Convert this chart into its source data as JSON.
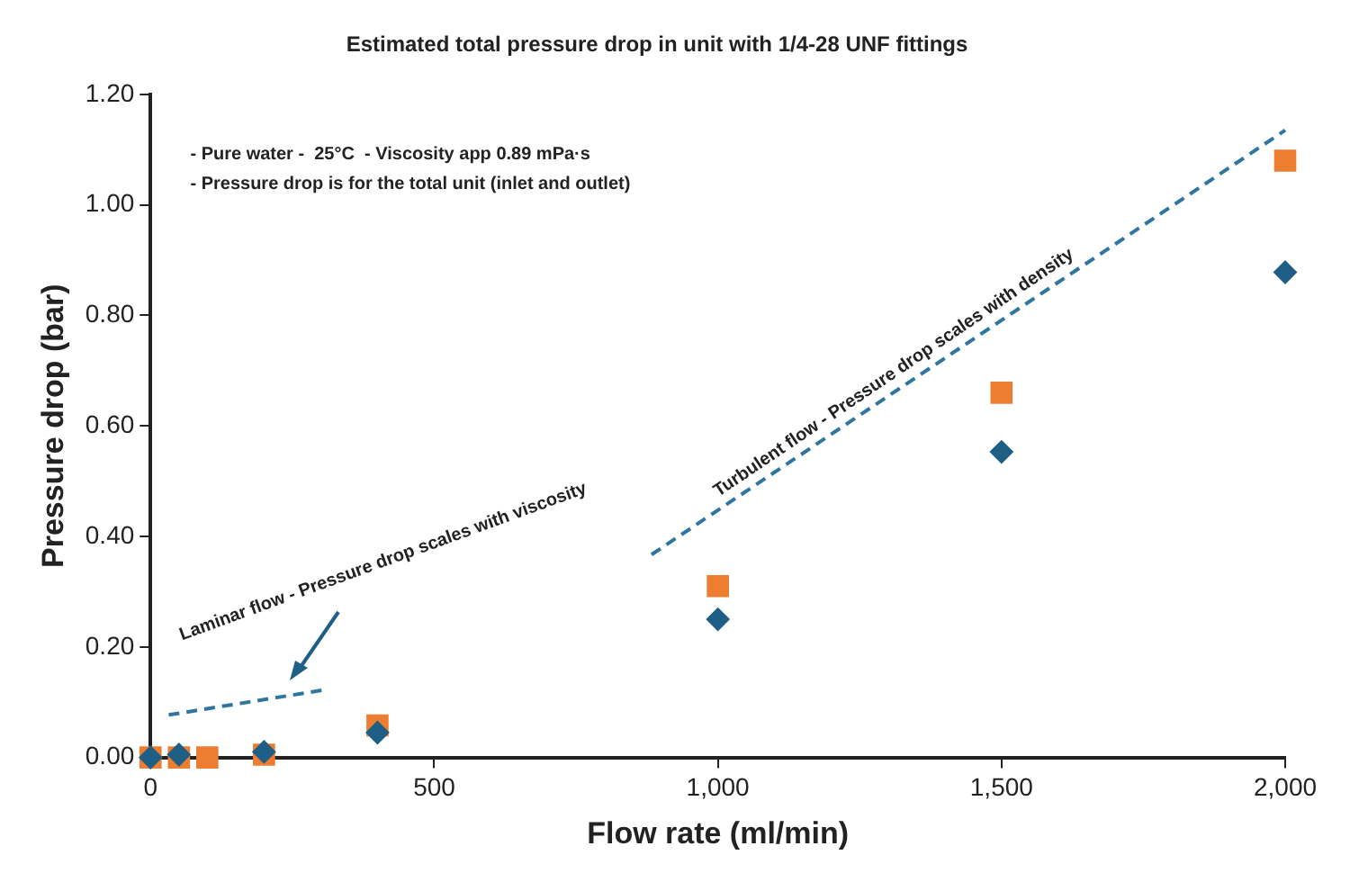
{
  "chart_data": {
    "type": "scatter",
    "title": "Estimated total pressure drop in unit with 1/4-28 UNF fittings",
    "xlabel": "Flow rate (ml/min)",
    "ylabel": "Pressure drop (bar)",
    "annotations": [
      "- Pure water -  25°C  - Viscosity app 0.89 mPa·s",
      "- Pressure drop is for the total unit (inlet and outlet)",
      "Laminar flow - Pressure drop scales with viscosity",
      "Turbulent flow - Pressure drop scales with density"
    ],
    "series": [
      {
        "color": "#1f5f86",
        "marker": "diamond",
        "x": [
          0,
          50,
          200,
          400,
          1000,
          1500,
          2000
        ],
        "values": [
          0,
          0.005,
          0.01,
          0.045,
          0.25,
          0.553,
          0.878
        ]
      },
      {
        "color": "#ed7d31",
        "marker": "square",
        "x": [
          0,
          50,
          100,
          200,
          400,
          1000,
          1500,
          2000
        ],
        "values": [
          0,
          0,
          0,
          0.005,
          0.058,
          0.31,
          0.66,
          1.08
        ]
      },
      {
        "type": "line",
        "color": "#2e75a0",
        "marker": "none",
        "line_style": "dashed",
        "x": [
          32,
          305
        ],
        "values": [
          0.077,
          0.122
        ]
      },
      {
        "type": "line",
        "color": "#2e75a0",
        "marker": "none",
        "line_style": "dashed",
        "x": [
          883,
          2000
        ],
        "values": [
          0.367,
          1.135
        ]
      }
    ],
    "xlim": [
      0,
      2000
    ],
    "xticks": [
      0,
      500,
      {
        "value": 1000,
        "label": "1,000"
      },
      {
        "value": 1500,
        "label": "1,500"
      },
      {
        "value": 2000,
        "label": "2,000"
      }
    ],
    "ylim": [
      0,
      1.2
    ],
    "yticks": [
      {
        "value": 0,
        "label": "0.00"
      },
      {
        "value": 0.2,
        "label": "0.20"
      },
      {
        "value": 0.4,
        "label": "0.40"
      },
      {
        "value": 0.6,
        "label": "0.60"
      },
      {
        "value": 0.8,
        "label": "0.80"
      },
      {
        "value": 1,
        "label": "1.00"
      },
      {
        "value": 1.2,
        "label": "1.20"
      }
    ],
    "grid": false,
    "legend": false
  }
}
